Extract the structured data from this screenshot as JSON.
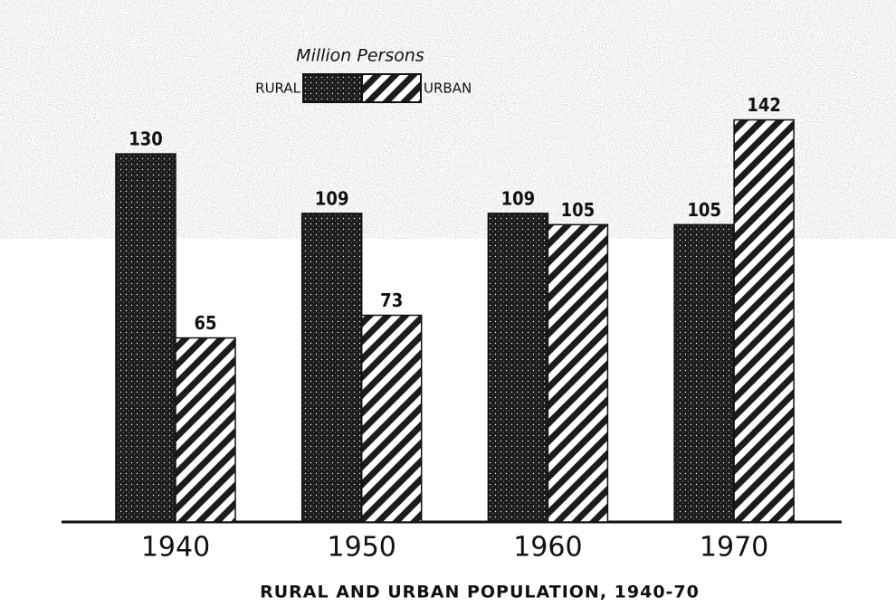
{
  "chart_data": {
    "type": "bar",
    "title": "RURAL AND URBAN POPULATION, 1940-70",
    "subtitle": "Million Persons",
    "categories": [
      "1940",
      "1950",
      "1960",
      "1970"
    ],
    "series": [
      {
        "name": "RURAL",
        "color": "#1c1c1c",
        "values": [
          130,
          109,
          109,
          105
        ]
      },
      {
        "name": "URBAN",
        "color": "#1c1c1c",
        "values": [
          65,
          73,
          105,
          142
        ]
      }
    ]
  }
}
